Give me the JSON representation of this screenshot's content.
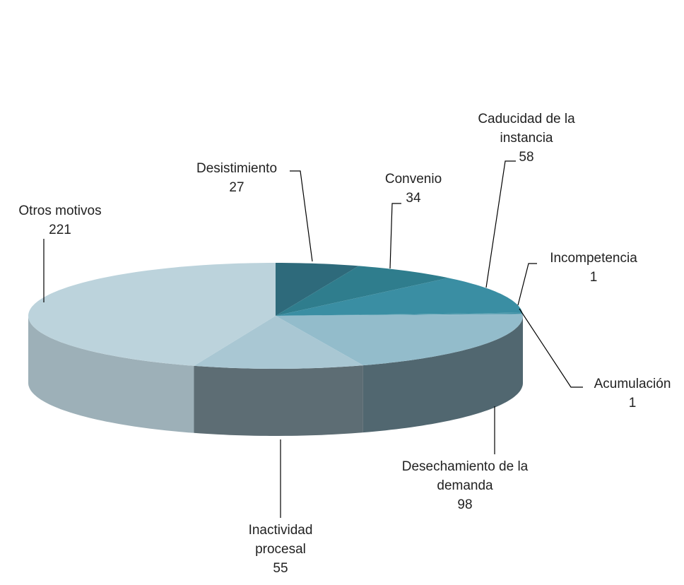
{
  "chart_data": {
    "type": "pie3d",
    "categories": [
      "Desistimiento",
      "Convenio",
      "Caducidad de la instancia",
      "Incompetencia",
      "Acumulación",
      "Desechamiento de la demanda",
      "Inactividad procesal",
      "Otros motivos"
    ],
    "values": [
      27,
      34,
      58,
      1,
      1,
      98,
      55,
      221
    ],
    "colors": [
      "#2e6a7b",
      "#2f7d8d",
      "#3a8ea3",
      "#3a8ea3",
      "#3b8fa4",
      "#93bccb",
      "#a9c7d3",
      "#bcd3dc"
    ]
  }
}
